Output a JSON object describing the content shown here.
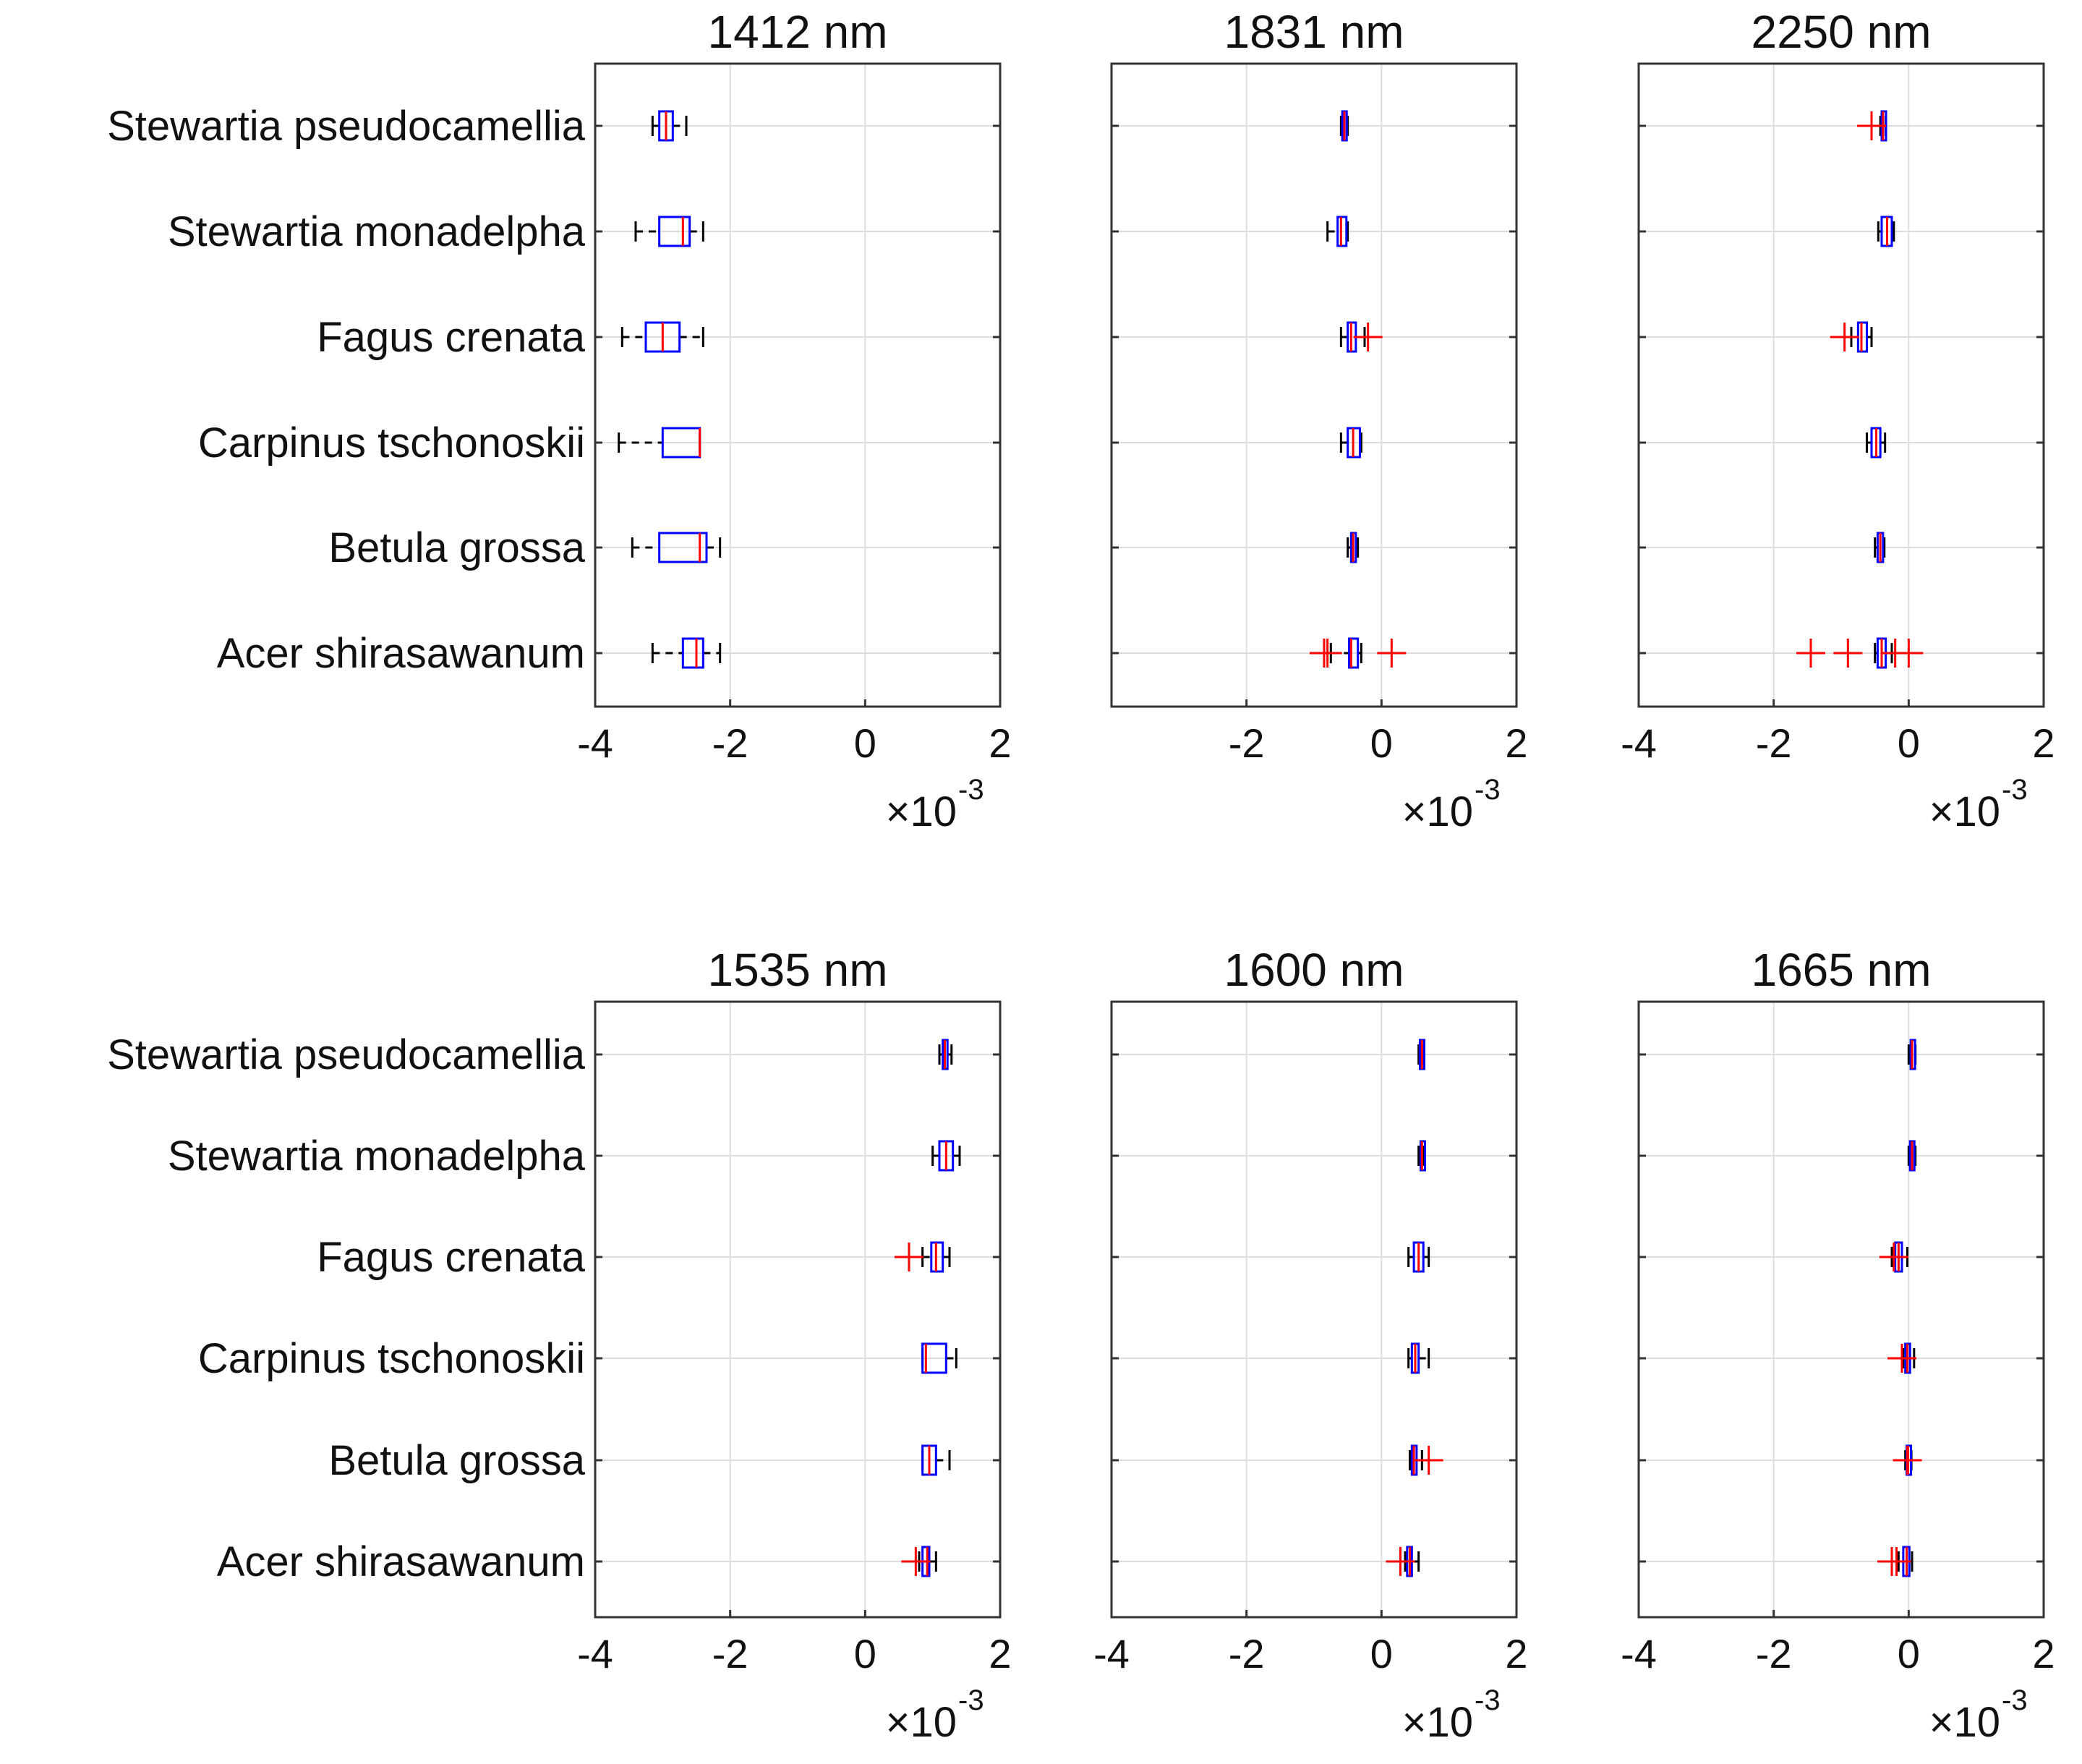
{
  "figure": {
    "categories": [
      "Stewartia pseudocamellia",
      "Stewartia monadelpha",
      "Fagus crenata",
      "Carpinus tschonoskii",
      "Betula grossa",
      "Acer shirasawanum"
    ],
    "exponent_multiplier": "×10",
    "exponent_power": "-3"
  },
  "chart_data": [
    {
      "type": "boxplot-horizontal",
      "title": "1412 nm",
      "xlim": [
        -4,
        2
      ],
      "xticks": [
        "-4",
        "-2",
        "0",
        "2"
      ],
      "xscale_label": "×10^-3",
      "boxes": [
        {
          "label": "Stewartia pseudocamellia",
          "whisker_low": -3.15,
          "q1": -3.05,
          "median": -2.95,
          "q3": -2.85,
          "whisker_high": -2.65,
          "outliers": []
        },
        {
          "label": "Stewartia monadelpha",
          "whisker_low": -3.4,
          "q1": -3.05,
          "median": -2.7,
          "q3": -2.6,
          "whisker_high": -2.4,
          "outliers": []
        },
        {
          "label": "Fagus crenata",
          "whisker_low": -3.6,
          "q1": -3.25,
          "median": -3.0,
          "q3": -2.75,
          "whisker_high": -2.4,
          "outliers": []
        },
        {
          "label": "Carpinus tschonoskii",
          "whisker_low": -3.65,
          "q1": -3.0,
          "median": -2.45,
          "q3": -2.45,
          "whisker_high": -2.45,
          "outliers": []
        },
        {
          "label": "Betula grossa",
          "whisker_low": -3.45,
          "q1": -3.05,
          "median": -2.45,
          "q3": -2.35,
          "whisker_high": -2.15,
          "outliers": []
        },
        {
          "label": "Acer shirasawanum",
          "whisker_low": -3.15,
          "q1": -2.7,
          "median": -2.5,
          "q3": -2.4,
          "whisker_high": -2.15,
          "outliers": []
        }
      ]
    },
    {
      "type": "boxplot-horizontal",
      "title": "1831 nm",
      "xlim": [
        -4,
        2
      ],
      "xticks": [
        "-2",
        "0",
        "2"
      ],
      "xscale_label": "×10^-3",
      "boxes": [
        {
          "label": "Stewartia pseudocamellia",
          "whisker_low": -0.6,
          "q1": -0.58,
          "median": -0.55,
          "q3": -0.52,
          "whisker_high": -0.5,
          "outliers": []
        },
        {
          "label": "Stewartia monadelpha",
          "whisker_low": -0.8,
          "q1": -0.65,
          "median": -0.6,
          "q3": -0.52,
          "whisker_high": -0.5,
          "outliers": []
        },
        {
          "label": "Fagus crenata",
          "whisker_low": -0.6,
          "q1": -0.5,
          "median": -0.45,
          "q3": -0.38,
          "whisker_high": -0.25,
          "outliers": [
            -0.2
          ]
        },
        {
          "label": "Carpinus tschonoskii",
          "whisker_low": -0.6,
          "q1": -0.5,
          "median": -0.42,
          "q3": -0.32,
          "whisker_high": -0.3,
          "outliers": []
        },
        {
          "label": "Betula grossa",
          "whisker_low": -0.5,
          "q1": -0.45,
          "median": -0.42,
          "q3": -0.38,
          "whisker_high": -0.35,
          "outliers": []
        },
        {
          "label": "Acer shirasawanum",
          "whisker_low": -0.75,
          "q1": -0.48,
          "median": -0.45,
          "q3": -0.35,
          "whisker_high": -0.3,
          "outliers": [
            -0.85,
            -0.8,
            0.15
          ]
        }
      ]
    },
    {
      "type": "boxplot-horizontal",
      "title": "2250 nm",
      "xlim": [
        -4,
        2
      ],
      "xticks": [
        "-4",
        "-2",
        "0",
        "2"
      ],
      "xscale_label": "×10^-3",
      "boxes": [
        {
          "label": "Stewartia pseudocamellia",
          "whisker_low": -0.42,
          "q1": -0.4,
          "median": -0.38,
          "q3": -0.36,
          "whisker_high": -0.34,
          "outliers": [
            -0.55
          ]
        },
        {
          "label": "Stewartia monadelpha",
          "whisker_low": -0.45,
          "q1": -0.4,
          "median": -0.32,
          "q3": -0.25,
          "whisker_high": -0.22,
          "outliers": []
        },
        {
          "label": "Fagus crenata",
          "whisker_low": -0.85,
          "q1": -0.75,
          "median": -0.7,
          "q3": -0.62,
          "whisker_high": -0.55,
          "outliers": [
            -0.95
          ]
        },
        {
          "label": "Carpinus tschonoskii",
          "whisker_low": -0.62,
          "q1": -0.55,
          "median": -0.48,
          "q3": -0.42,
          "whisker_high": -0.35,
          "outliers": []
        },
        {
          "label": "Betula grossa",
          "whisker_low": -0.5,
          "q1": -0.46,
          "median": -0.42,
          "q3": -0.38,
          "whisker_high": -0.36,
          "outliers": []
        },
        {
          "label": "Acer shirasawanum",
          "whisker_low": -0.5,
          "q1": -0.46,
          "median": -0.4,
          "q3": -0.34,
          "whisker_high": -0.25,
          "outliers": [
            -1.45,
            -0.9,
            -0.2,
            0.0
          ]
        }
      ]
    },
    {
      "type": "boxplot-horizontal",
      "title": "1535 nm",
      "xlim": [
        -4,
        2
      ],
      "xticks": [
        "-4",
        "-2",
        "0",
        "2"
      ],
      "xscale_label": "×10^-3",
      "boxes": [
        {
          "label": "Stewartia pseudocamellia",
          "whisker_low": 1.1,
          "q1": 1.15,
          "median": 1.18,
          "q3": 1.22,
          "whisker_high": 1.28,
          "outliers": []
        },
        {
          "label": "Stewartia monadelpha",
          "whisker_low": 1.0,
          "q1": 1.1,
          "median": 1.2,
          "q3": 1.3,
          "whisker_high": 1.4,
          "outliers": []
        },
        {
          "label": "Fagus crenata",
          "whisker_low": 0.85,
          "q1": 0.98,
          "median": 1.05,
          "q3": 1.15,
          "whisker_high": 1.25,
          "outliers": [
            0.65
          ]
        },
        {
          "label": "Carpinus tschonoskii",
          "whisker_low": 0.85,
          "q1": 0.85,
          "median": 0.9,
          "q3": 1.2,
          "whisker_high": 1.35,
          "outliers": []
        },
        {
          "label": "Betula grossa",
          "whisker_low": 0.85,
          "q1": 0.85,
          "median": 0.95,
          "q3": 1.05,
          "whisker_high": 1.25,
          "outliers": []
        },
        {
          "label": "Acer shirasawanum",
          "whisker_low": 0.8,
          "q1": 0.85,
          "median": 0.92,
          "q3": 0.95,
          "whisker_high": 1.05,
          "outliers": [
            0.75
          ]
        }
      ]
    },
    {
      "type": "boxplot-horizontal",
      "title": "1600 nm",
      "xlim": [
        -4,
        2
      ],
      "xticks": [
        "-4",
        "-2",
        "0",
        "2"
      ],
      "xscale_label": "×10^-3",
      "boxes": [
        {
          "label": "Stewartia pseudocamellia",
          "whisker_low": 0.55,
          "q1": 0.57,
          "median": 0.6,
          "q3": 0.62,
          "whisker_high": 0.63,
          "outliers": []
        },
        {
          "label": "Stewartia monadelpha",
          "whisker_low": 0.55,
          "q1": 0.58,
          "median": 0.6,
          "q3": 0.62,
          "whisker_high": 0.63,
          "outliers": []
        },
        {
          "label": "Fagus crenata",
          "whisker_low": 0.4,
          "q1": 0.48,
          "median": 0.55,
          "q3": 0.62,
          "whisker_high": 0.7,
          "outliers": []
        },
        {
          "label": "Carpinus tschonoskii",
          "whisker_low": 0.4,
          "q1": 0.45,
          "median": 0.5,
          "q3": 0.55,
          "whisker_high": 0.7,
          "outliers": []
        },
        {
          "label": "Betula grossa",
          "whisker_low": 0.42,
          "q1": 0.45,
          "median": 0.48,
          "q3": 0.52,
          "whisker_high": 0.6,
          "outliers": [
            0.7
          ]
        },
        {
          "label": "Acer shirasawanum",
          "whisker_low": 0.35,
          "q1": 0.38,
          "median": 0.42,
          "q3": 0.45,
          "whisker_high": 0.55,
          "outliers": [
            0.28
          ]
        }
      ]
    },
    {
      "type": "boxplot-horizontal",
      "title": "1665 nm",
      "xlim": [
        -4,
        2
      ],
      "xticks": [
        "-4",
        "-2",
        "0",
        "2"
      ],
      "xscale_label": "×10^-3",
      "boxes": [
        {
          "label": "Stewartia pseudocamellia",
          "whisker_low": 0.0,
          "q1": 0.03,
          "median": 0.05,
          "q3": 0.08,
          "whisker_high": 0.1,
          "outliers": []
        },
        {
          "label": "Stewartia monadelpha",
          "whisker_low": 0.0,
          "q1": 0.02,
          "median": 0.05,
          "q3": 0.08,
          "whisker_high": 0.1,
          "outliers": []
        },
        {
          "label": "Fagus crenata",
          "whisker_low": -0.25,
          "q1": -0.2,
          "median": -0.15,
          "q3": -0.1,
          "whisker_high": -0.02,
          "outliers": [
            -0.22
          ]
        },
        {
          "label": "Carpinus tschonoskii",
          "whisker_low": -0.08,
          "q1": -0.05,
          "median": -0.02,
          "q3": 0.02,
          "whisker_high": 0.08,
          "outliers": [
            -0.1
          ]
        },
        {
          "label": "Betula grossa",
          "whisker_low": -0.05,
          "q1": -0.03,
          "median": -0.01,
          "q3": 0.01,
          "whisker_high": 0.04,
          "outliers": [
            -0.02
          ]
        },
        {
          "label": "Acer shirasawanum",
          "whisker_low": -0.15,
          "q1": -0.08,
          "median": -0.03,
          "q3": 0.01,
          "whisker_high": 0.05,
          "outliers": [
            -0.25,
            -0.18
          ]
        }
      ]
    }
  ],
  "colors": {
    "box": "#0000ff",
    "median": "#ff0000",
    "whisker": "#000000",
    "outlier": "#ff0000",
    "grid": "#dddddd",
    "axes": "#333333"
  }
}
